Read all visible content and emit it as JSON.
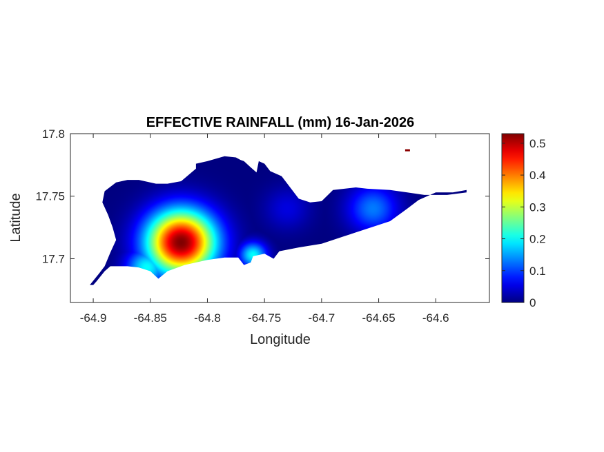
{
  "chart_data": {
    "type": "heatmap",
    "title": "EFFECTIVE RAINFALL (mm) 16-Jan-2026",
    "xlabel": "Longitude",
    "ylabel": "Latitude",
    "xlim": [
      -64.92,
      -64.553
    ],
    "ylim": [
      17.665,
      17.8
    ],
    "xticks": [
      -64.9,
      -64.85,
      -64.8,
      -64.75,
      -64.7,
      -64.65,
      -64.6
    ],
    "xtick_labels": [
      "-64.9",
      "-64.85",
      "-64.8",
      "-64.75",
      "-64.7",
      "-64.65",
      "-64.6"
    ],
    "yticks": [
      17.7,
      17.75,
      17.8
    ],
    "ytick_labels": [
      "17.7",
      "17.75",
      "17.8"
    ],
    "colorbar": {
      "colormap": "jet",
      "range": [
        0,
        0.53
      ],
      "ticks": [
        0,
        0.1,
        0.2,
        0.3,
        0.4,
        0.5
      ],
      "tick_labels": [
        "0",
        "0.1",
        "0.2",
        "0.3",
        "0.4",
        "0.5"
      ]
    },
    "grid": false,
    "field_centers": [
      {
        "lon": -64.823,
        "lat": 17.713,
        "value": 0.53,
        "radius": 0.03
      },
      {
        "lon": -64.853,
        "lat": 17.693,
        "value": 0.2,
        "radius": 0.018
      },
      {
        "lon": -64.76,
        "lat": 17.703,
        "value": 0.2,
        "radius": 0.012
      },
      {
        "lon": -64.655,
        "lat": 17.74,
        "value": 0.13,
        "radius": 0.022
      },
      {
        "lon": -64.73,
        "lat": 17.74,
        "value": 0.05,
        "radius": 0.02
      }
    ],
    "island_outline": [
      [
        -64.9,
        17.679
      ],
      [
        -64.897,
        17.682
      ],
      [
        -64.89,
        17.69
      ],
      [
        -64.885,
        17.694
      ],
      [
        -64.87,
        17.694
      ],
      [
        -64.86,
        17.693
      ],
      [
        -64.85,
        17.69
      ],
      [
        -64.843,
        17.684
      ],
      [
        -64.835,
        17.69
      ],
      [
        -64.82,
        17.695
      ],
      [
        -64.8,
        17.699
      ],
      [
        -64.785,
        17.701
      ],
      [
        -64.773,
        17.701
      ],
      [
        -64.768,
        17.695
      ],
      [
        -64.762,
        17.697
      ],
      [
        -64.76,
        17.702
      ],
      [
        -64.75,
        17.704
      ],
      [
        -64.742,
        17.7
      ],
      [
        -64.737,
        17.706
      ],
      [
        -64.72,
        17.709
      ],
      [
        -64.7,
        17.712
      ],
      [
        -64.68,
        17.718
      ],
      [
        -64.66,
        17.724
      ],
      [
        -64.64,
        17.73
      ],
      [
        -64.625,
        17.74
      ],
      [
        -64.615,
        17.747
      ],
      [
        -64.6,
        17.753
      ],
      [
        -64.585,
        17.753
      ],
      [
        -64.573,
        17.755
      ],
      [
        -64.573,
        17.753
      ],
      [
        -64.59,
        17.751
      ],
      [
        -64.61,
        17.751
      ],
      [
        -64.625,
        17.753
      ],
      [
        -64.64,
        17.755
      ],
      [
        -64.66,
        17.756
      ],
      [
        -64.67,
        17.757
      ],
      [
        -64.69,
        17.755
      ],
      [
        -64.7,
        17.746
      ],
      [
        -64.71,
        17.745
      ],
      [
        -64.72,
        17.748
      ],
      [
        -64.735,
        17.766
      ],
      [
        -64.745,
        17.77
      ],
      [
        -64.75,
        17.776
      ],
      [
        -64.755,
        17.778
      ],
      [
        -64.757,
        17.769
      ],
      [
        -64.762,
        17.773
      ],
      [
        -64.768,
        17.778
      ],
      [
        -64.771,
        17.779
      ],
      [
        -64.775,
        17.781
      ],
      [
        -64.785,
        17.782
      ],
      [
        -64.8,
        17.778
      ],
      [
        -64.81,
        17.776
      ],
      [
        -64.81,
        17.772
      ],
      [
        -64.823,
        17.762
      ],
      [
        -64.835,
        17.76
      ],
      [
        -64.845,
        17.76
      ],
      [
        -64.86,
        17.763
      ],
      [
        -64.87,
        17.763
      ],
      [
        -64.88,
        17.761
      ],
      [
        -64.89,
        17.754
      ],
      [
        -64.892,
        17.745
      ],
      [
        -64.887,
        17.735
      ],
      [
        -64.883,
        17.725
      ],
      [
        -64.88,
        17.715
      ],
      [
        -64.885,
        17.705
      ],
      [
        -64.89,
        17.694
      ],
      [
        -64.895,
        17.688
      ],
      [
        -64.903,
        17.679
      ]
    ],
    "islet": [
      -64.625,
      17.787
    ]
  }
}
